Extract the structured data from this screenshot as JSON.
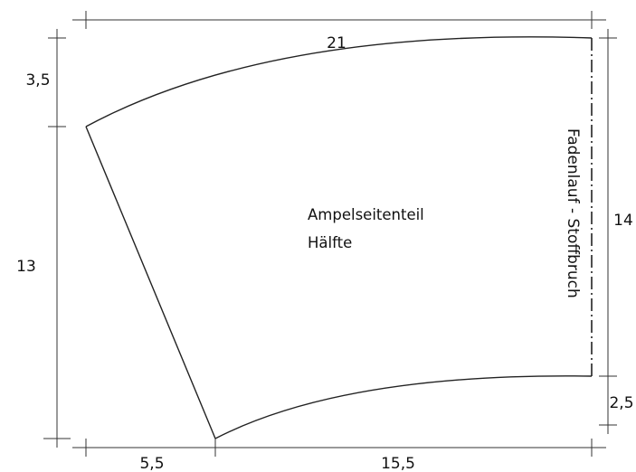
{
  "pattern": {
    "piece_name_line1": "Ampelseitenteil",
    "piece_name_line2": "Hälfte",
    "grainline_label": "Fadenlauf - Stoffbruch"
  },
  "dimensions": {
    "top_width": "21",
    "left_top_offset": "3,5",
    "left_height": "13",
    "right_height": "14",
    "right_bottom_offset": "2,5",
    "bottom_left_offset": "5,5",
    "bottom_width": "15,5"
  },
  "colors": {
    "line": "#222222",
    "background": "#ffffff"
  }
}
